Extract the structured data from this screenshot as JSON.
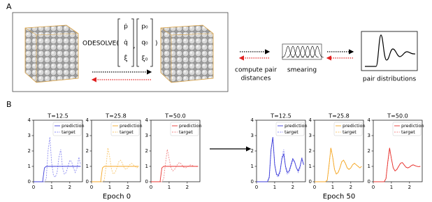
{
  "panel_labels": [
    "A",
    "B"
  ],
  "diagram": {
    "function": "ODESOLVE(",
    "close": ")",
    "derivatives": [
      "ṗ",
      "q̇",
      "ξ̇"
    ],
    "initial": [
      "p₀",
      "q₀",
      "ξ₀"
    ],
    "separator": ",",
    "step1": [
      "compute pair",
      "distances"
    ],
    "step2": "smearing",
    "step3": "pair distributions"
  },
  "captions": [
    "Epoch 0",
    "Epoch 50"
  ],
  "chart_data": [
    {
      "type": "line",
      "title": "T=12.5",
      "x": [
        0,
        0.1,
        0.2,
        0.3,
        0.4,
        0.5,
        0.6,
        0.7,
        0.8,
        0.9,
        1.0,
        1.1,
        1.2,
        1.3,
        1.4,
        1.5,
        1.6,
        1.7,
        1.8,
        1.9,
        2.0,
        2.1,
        2.2,
        2.3,
        2.4,
        2.5,
        2.6
      ],
      "series": [
        {
          "name": "prediction",
          "color": "#3b3bd8",
          "dashed": false,
          "values": [
            0,
            0,
            0,
            0,
            0,
            0,
            0.9,
            1.0,
            1.0,
            1.0,
            1.0,
            1.0,
            1.0,
            1.0,
            1.0,
            1.0,
            1.0,
            1.0,
            1.0,
            1.0,
            1.0,
            1.0,
            1.0,
            1.0,
            1.0,
            1.0,
            1.0
          ]
        },
        {
          "name": "target",
          "color": "#8c8cf0",
          "dashed": true,
          "values": [
            0,
            0,
            0,
            0,
            0,
            0,
            0,
            0.2,
            2.0,
            2.9,
            1.2,
            0.4,
            0.3,
            0.6,
            1.6,
            2.1,
            0.9,
            0.5,
            0.6,
            1.0,
            1.4,
            1.3,
            0.9,
            0.6,
            0.9,
            1.6,
            1.1
          ]
        }
      ],
      "xlim": [
        0,
        2.7
      ],
      "ylim": [
        0,
        4
      ],
      "xticks": [
        0,
        1,
        2
      ],
      "yticks": [
        0,
        1,
        2,
        3,
        4
      ],
      "legend": "upper right"
    },
    {
      "type": "line",
      "title": "T=25.8",
      "x": [
        0,
        0.1,
        0.2,
        0.3,
        0.4,
        0.5,
        0.6,
        0.7,
        0.8,
        0.9,
        1.0,
        1.1,
        1.2,
        1.3,
        1.4,
        1.5,
        1.6,
        1.7,
        1.8,
        1.9,
        2.0,
        2.1,
        2.2,
        2.3,
        2.4,
        2.5,
        2.6
      ],
      "series": [
        {
          "name": "prediction",
          "color": "#f5a623",
          "dashed": false,
          "values": [
            0,
            0,
            0,
            0,
            0,
            0,
            0.9,
            1.0,
            1.0,
            1.0,
            1.0,
            1.0,
            1.0,
            1.0,
            1.0,
            1.0,
            1.0,
            1.0,
            1.0,
            1.0,
            1.0,
            1.0,
            1.0,
            1.0,
            1.0,
            1.0,
            1.0
          ]
        },
        {
          "name": "target",
          "color": "#f8c870",
          "dashed": true,
          "values": [
            0,
            0,
            0,
            0,
            0,
            0,
            0,
            0.1,
            1.0,
            2.2,
            1.6,
            0.8,
            0.5,
            0.6,
            0.9,
            1.3,
            1.4,
            1.2,
            0.9,
            0.8,
            0.9,
            1.1,
            1.2,
            1.1,
            1.0,
            0.9,
            1.0
          ]
        }
      ],
      "xlim": [
        0,
        2.7
      ],
      "ylim": [
        0,
        4
      ],
      "xticks": [
        0,
        1,
        2
      ],
      "yticks": [
        0,
        1,
        2,
        3,
        4
      ],
      "legend": "upper right"
    },
    {
      "type": "line",
      "title": "T=50.0",
      "x": [
        0,
        0.1,
        0.2,
        0.3,
        0.4,
        0.5,
        0.6,
        0.7,
        0.8,
        0.9,
        1.0,
        1.1,
        1.2,
        1.3,
        1.4,
        1.5,
        1.6,
        1.7,
        1.8,
        1.9,
        2.0,
        2.1,
        2.2,
        2.3,
        2.4,
        2.5,
        2.6
      ],
      "series": [
        {
          "name": "prediction",
          "color": "#e8302c",
          "dashed": false,
          "values": [
            0,
            0,
            0,
            0,
            0,
            0,
            0.9,
            1.0,
            1.0,
            1.0,
            1.0,
            1.0,
            1.0,
            1.0,
            1.0,
            1.0,
            1.0,
            1.0,
            1.0,
            1.0,
            1.0,
            1.0,
            1.0,
            1.0,
            1.0,
            1.0,
            1.0
          ]
        },
        {
          "name": "target",
          "color": "#f08888",
          "dashed": true,
          "values": [
            0,
            0,
            0,
            0,
            0,
            0,
            0,
            0.2,
            1.2,
            2.1,
            1.5,
            0.9,
            0.7,
            0.8,
            1.0,
            1.2,
            1.25,
            1.1,
            0.95,
            0.9,
            0.95,
            1.05,
            1.1,
            1.05,
            1.0,
            0.98,
            1.0
          ]
        }
      ],
      "xlim": [
        0,
        2.7
      ],
      "ylim": [
        0,
        4
      ],
      "xticks": [
        0,
        1,
        2
      ],
      "yticks": [
        0,
        1,
        2,
        3,
        4
      ],
      "legend": "upper right"
    },
    {
      "type": "line",
      "title": "T=12.5",
      "x": [
        0,
        0.1,
        0.2,
        0.3,
        0.4,
        0.5,
        0.6,
        0.7,
        0.8,
        0.9,
        1.0,
        1.1,
        1.2,
        1.3,
        1.4,
        1.5,
        1.6,
        1.7,
        1.8,
        1.9,
        2.0,
        2.1,
        2.2,
        2.3,
        2.4,
        2.5,
        2.6
      ],
      "series": [
        {
          "name": "prediction",
          "color": "#3b3bd8",
          "dashed": false,
          "values": [
            0,
            0,
            0,
            0,
            0,
            0,
            0,
            0.3,
            2.1,
            2.9,
            1.1,
            0.5,
            0.4,
            0.7,
            1.5,
            1.8,
            1.0,
            0.6,
            0.7,
            1.1,
            1.5,
            1.3,
            0.9,
            0.7,
            1.0,
            1.5,
            1.1
          ]
        },
        {
          "name": "target",
          "color": "#8c8cf0",
          "dashed": true,
          "values": [
            0,
            0,
            0,
            0,
            0,
            0,
            0,
            0.2,
            2.0,
            2.9,
            1.2,
            0.4,
            0.3,
            0.6,
            1.6,
            2.1,
            0.9,
            0.5,
            0.6,
            1.0,
            1.4,
            1.3,
            0.9,
            0.6,
            0.9,
            1.6,
            1.1
          ]
        }
      ],
      "xlim": [
        0,
        2.7
      ],
      "ylim": [
        0,
        4
      ],
      "xticks": [
        0,
        1,
        2
      ],
      "yticks": [
        0,
        1,
        2,
        3,
        4
      ],
      "legend": "upper right"
    },
    {
      "type": "line",
      "title": "T=25.8",
      "x": [
        0,
        0.1,
        0.2,
        0.3,
        0.4,
        0.5,
        0.6,
        0.7,
        0.8,
        0.9,
        1.0,
        1.1,
        1.2,
        1.3,
        1.4,
        1.5,
        1.6,
        1.7,
        1.8,
        1.9,
        2.0,
        2.1,
        2.2,
        2.3,
        2.4,
        2.5,
        2.6
      ],
      "series": [
        {
          "name": "prediction",
          "color": "#f5a623",
          "dashed": false,
          "values": [
            0,
            0,
            0,
            0,
            0,
            0,
            0,
            0.1,
            1.1,
            2.2,
            1.6,
            0.8,
            0.5,
            0.6,
            0.9,
            1.3,
            1.4,
            1.2,
            0.9,
            0.8,
            0.9,
            1.1,
            1.2,
            1.1,
            1.0,
            0.9,
            1.0
          ]
        },
        {
          "name": "target",
          "color": "#f8c870",
          "dashed": true,
          "values": [
            0,
            0,
            0,
            0,
            0,
            0,
            0,
            0.1,
            1.0,
            2.2,
            1.6,
            0.8,
            0.5,
            0.6,
            0.9,
            1.3,
            1.4,
            1.2,
            0.9,
            0.8,
            0.9,
            1.1,
            1.2,
            1.1,
            1.0,
            0.9,
            1.0
          ]
        }
      ],
      "xlim": [
        0,
        2.7
      ],
      "ylim": [
        0,
        4
      ],
      "xticks": [
        0,
        1,
        2
      ],
      "yticks": [
        0,
        1,
        2,
        3,
        4
      ],
      "legend": "upper right"
    },
    {
      "type": "line",
      "title": "T=50.0",
      "x": [
        0,
        0.1,
        0.2,
        0.3,
        0.4,
        0.5,
        0.6,
        0.7,
        0.8,
        0.9,
        1.0,
        1.1,
        1.2,
        1.3,
        1.4,
        1.5,
        1.6,
        1.7,
        1.8,
        1.9,
        2.0,
        2.1,
        2.2,
        2.3,
        2.4,
        2.5,
        2.6
      ],
      "series": [
        {
          "name": "prediction",
          "color": "#e8302c",
          "dashed": false,
          "values": [
            0,
            0,
            0,
            0,
            0,
            0,
            0,
            0.2,
            1.3,
            2.2,
            1.5,
            0.9,
            0.7,
            0.8,
            1.0,
            1.2,
            1.25,
            1.1,
            0.95,
            0.9,
            0.95,
            1.05,
            1.1,
            1.05,
            1.0,
            0.98,
            1.0
          ]
        },
        {
          "name": "target",
          "color": "#f08888",
          "dashed": true,
          "values": [
            0,
            0,
            0,
            0,
            0,
            0,
            0,
            0.2,
            1.2,
            2.1,
            1.5,
            0.9,
            0.7,
            0.8,
            1.0,
            1.2,
            1.25,
            1.1,
            0.95,
            0.9,
            0.95,
            1.05,
            1.1,
            1.05,
            1.0,
            0.98,
            1.0
          ]
        }
      ],
      "xlim": [
        0,
        2.7
      ],
      "ylim": [
        0,
        4
      ],
      "xticks": [
        0,
        1,
        2
      ],
      "yticks": [
        0,
        1,
        2,
        3,
        4
      ],
      "legend": "upper right"
    }
  ]
}
